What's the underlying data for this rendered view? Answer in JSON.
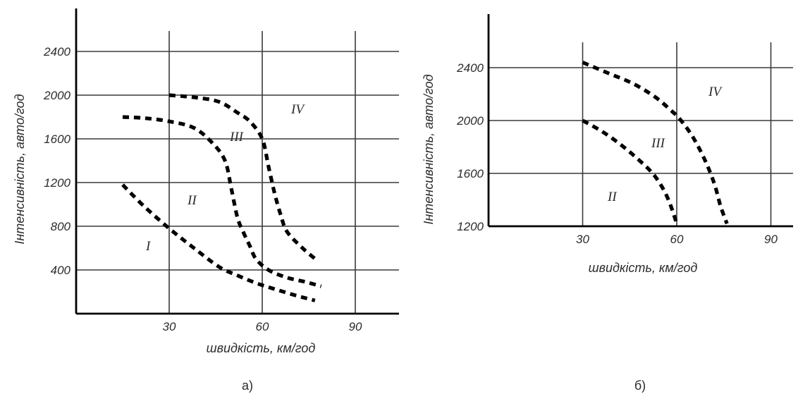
{
  "chart_data": [
    {
      "type": "line",
      "caption": "а)",
      "xlabel": "швидкість, км/год",
      "ylabel": "Інтенсивність, авто/год",
      "x_ticks": [
        30,
        60,
        90
      ],
      "y_ticks": [
        400,
        800,
        1200,
        1600,
        2000,
        2400
      ],
      "xlim": [
        0,
        105
      ],
      "ylim": [
        0,
        2800
      ],
      "grid": true,
      "series": [
        {
          "x": [
            15,
            22,
            30,
            38,
            46,
            52,
            58,
            64,
            71,
            77
          ],
          "y": [
            1180,
            980,
            780,
            600,
            430,
            350,
            280,
            225,
            165,
            120
          ]
        },
        {
          "x": [
            15,
            22,
            30,
            38,
            44,
            48,
            50,
            52,
            54,
            56,
            58,
            62,
            68,
            74,
            79
          ],
          "y": [
            1800,
            1790,
            1760,
            1700,
            1560,
            1400,
            1150,
            880,
            740,
            620,
            500,
            400,
            330,
            290,
            250
          ]
        },
        {
          "x": [
            30,
            38,
            46,
            52,
            56,
            60,
            62,
            64,
            66,
            68,
            73,
            78
          ],
          "y": [
            2000,
            1980,
            1940,
            1840,
            1760,
            1600,
            1350,
            1100,
            900,
            750,
            600,
            480
          ]
        }
      ],
      "annotations": [
        "I",
        "II",
        "III",
        "IV"
      ]
    },
    {
      "type": "line",
      "caption": "б)",
      "xlabel": "швидкість, км/год",
      "ylabel": "Інтенсивність, авто/год",
      "x_ticks": [
        30,
        60,
        90
      ],
      "y_ticks": [
        1200,
        1600,
        2000,
        2400
      ],
      "xlim": [
        0,
        102
      ],
      "ylim": [
        1200,
        2750
      ],
      "grid": true,
      "series": [
        {
          "x": [
            30,
            36,
            42,
            48,
            53,
            57,
            60
          ],
          "y": [
            2000,
            1920,
            1820,
            1700,
            1580,
            1420,
            1220
          ]
        },
        {
          "x": [
            30,
            38,
            46,
            53,
            58,
            61,
            65,
            69,
            72,
            74,
            76
          ],
          "y": [
            2440,
            2360,
            2280,
            2180,
            2080,
            2010,
            1880,
            1700,
            1520,
            1350,
            1220
          ]
        }
      ],
      "annotations": [
        "II",
        "III",
        "IV"
      ]
    }
  ]
}
